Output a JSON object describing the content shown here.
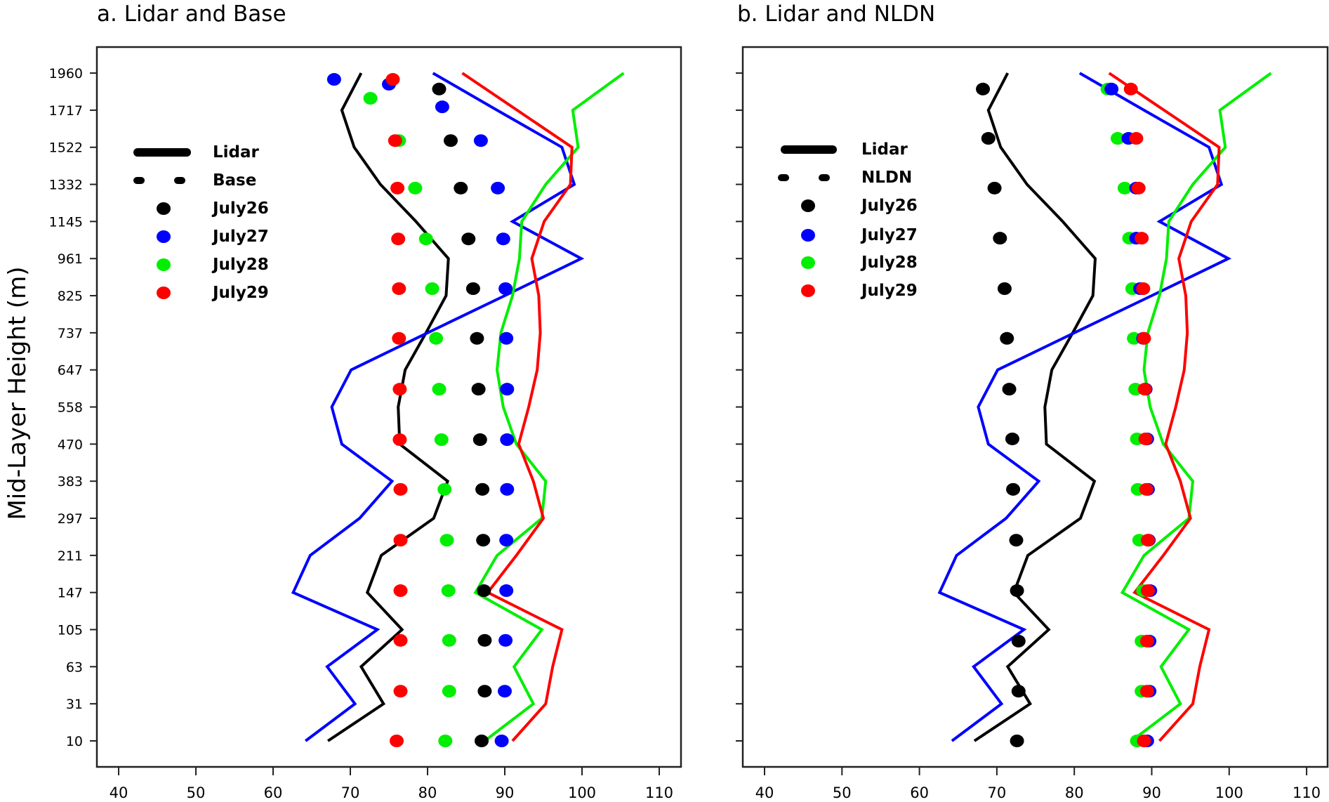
{
  "figure": {
    "panels": [
      {
        "id": "a",
        "title": "a. Lidar and Base",
        "legend_model_label": "Base"
      },
      {
        "id": "b",
        "title": "b. Lidar and NLDN",
        "legend_model_label": "NLDN"
      }
    ],
    "y_axis_label": "Mid-Layer Height (m)",
    "legend": {
      "lidar_label": "Lidar",
      "days": [
        {
          "label": "July26",
          "color": "#000000"
        },
        {
          "label": "July27",
          "color": "#0000ff"
        },
        {
          "label": "July28",
          "color": "#00ee00"
        },
        {
          "label": "July29",
          "color": "#ff0000"
        }
      ]
    }
  },
  "chart_data": [
    {
      "type": "line",
      "title": "a. Lidar and Base",
      "xlabel": "",
      "ylabel": "Mid-Layer Height (m)",
      "xlim": [
        40,
        110
      ],
      "xticks": [
        40,
        50,
        60,
        70,
        80,
        90,
        100,
        110
      ],
      "yticks": [
        10,
        31,
        63,
        105,
        147,
        211,
        297,
        383,
        470,
        558,
        647,
        737,
        825,
        961,
        1145,
        1332,
        1522,
        1717,
        1960
      ],
      "y_axis_type": "categorical-index",
      "grid": false,
      "legend": [
        "Lidar (solid line)",
        "Base (dots)",
        "July26",
        "July27",
        "July28",
        "July29"
      ],
      "legend_position": "upper-left",
      "series_lines": [
        {
          "name": "Lidar July26",
          "color": "#000000",
          "values": [
            67.1,
            74.3,
            71.4,
            76.7,
            72.2,
            74.0,
            80.8,
            82.6,
            76.4,
            76.2,
            77.1,
            79.8,
            82.4,
            82.7,
            78.5,
            73.9,
            70.5,
            68.9,
            71.4
          ]
        },
        {
          "name": "Lidar July27",
          "color": "#0000ff",
          "values": [
            64.2,
            70.6,
            67.0,
            73.5,
            62.6,
            64.8,
            71.2,
            75.4,
            68.9,
            67.6,
            70.1,
            80.0,
            90.0,
            99.9,
            91.0,
            99.0,
            97.4,
            89.0,
            80.7
          ]
        },
        {
          "name": "Lidar July28",
          "color": "#00ee00",
          "values": [
            87.4,
            93.7,
            91.2,
            94.8,
            86.2,
            89.0,
            94.8,
            95.3,
            91.5,
            89.8,
            89.0,
            89.5,
            91.0,
            91.9,
            92.2,
            95.3,
            99.5,
            98.8,
            105.4
          ]
        },
        {
          "name": "Lidar July29",
          "color": "#ff0000",
          "values": [
            91.0,
            95.3,
            96.2,
            97.4,
            87.8,
            91.5,
            95.0,
            93.7,
            91.8,
            93.1,
            94.2,
            94.6,
            94.4,
            93.5,
            95.1,
            98.5,
            98.7,
            91.6,
            84.5
          ]
        }
      ],
      "dot_rows_index": [
        0,
        1.34,
        2.71,
        4.05,
        5.41,
        6.78,
        8.12,
        9.48,
        10.85,
        12.19,
        13.53,
        14.9,
        16.18
      ],
      "series_dots": [
        {
          "name": "Base July26",
          "color": "#000000",
          "values": [
            87.0,
            87.4,
            87.4,
            87.3,
            87.2,
            87.1,
            86.8,
            86.6,
            86.4,
            85.9,
            85.3,
            84.3,
            83.0
          ],
          "extra": [
            [
              17.57,
              81.5
            ]
          ]
        },
        {
          "name": "Base July27",
          "color": "#0000ff",
          "values": [
            89.6,
            90.0,
            90.1,
            90.2,
            90.2,
            90.3,
            90.3,
            90.3,
            90.2,
            90.1,
            89.8,
            89.1,
            86.9
          ],
          "extra": [
            [
              17.83,
              67.9
            ],
            [
              17.7,
              75.0
            ],
            [
              17.09,
              81.9
            ]
          ]
        },
        {
          "name": "Base July28",
          "color": "#00ee00",
          "values": [
            82.3,
            82.8,
            82.8,
            82.7,
            82.5,
            82.2,
            81.8,
            81.5,
            81.1,
            80.6,
            79.8,
            78.4,
            76.3
          ],
          "extra": [
            [
              17.32,
              72.6
            ]
          ]
        },
        {
          "name": "Base July29",
          "color": "#ff0000",
          "values": [
            76.0,
            76.5,
            76.5,
            76.5,
            76.5,
            76.5,
            76.4,
            76.4,
            76.3,
            76.3,
            76.2,
            76.1,
            75.8
          ],
          "extra": [
            [
              17.83,
              75.5
            ]
          ]
        }
      ]
    },
    {
      "type": "line",
      "title": "b. Lidar and NLDN",
      "xlabel": "",
      "ylabel": "",
      "xlim": [
        40,
        110
      ],
      "xticks": [
        40,
        50,
        60,
        70,
        80,
        90,
        100,
        110
      ],
      "yticks": [
        10,
        31,
        63,
        105,
        147,
        211,
        297,
        383,
        470,
        558,
        647,
        737,
        825,
        961,
        1145,
        1332,
        1522,
        1717,
        1960
      ],
      "y_axis_type": "categorical-index",
      "grid": false,
      "legend": [
        "Lidar (solid line)",
        "NLDN (dots)",
        "July26",
        "July27",
        "July28",
        "July29"
      ],
      "legend_position": "upper-left",
      "series_lines": [
        {
          "name": "Lidar July26",
          "color": "#000000",
          "values": [
            67.1,
            74.3,
            71.4,
            76.7,
            72.2,
            74.0,
            80.8,
            82.6,
            76.4,
            76.2,
            77.1,
            79.8,
            82.4,
            82.7,
            78.5,
            73.9,
            70.5,
            68.9,
            71.4
          ]
        },
        {
          "name": "Lidar July27",
          "color": "#0000ff",
          "values": [
            64.2,
            70.6,
            67.0,
            73.5,
            62.6,
            64.8,
            71.2,
            75.4,
            68.9,
            67.6,
            70.1,
            80.0,
            90.0,
            99.9,
            91.0,
            99.0,
            97.4,
            89.0,
            80.7
          ]
        },
        {
          "name": "Lidar July28",
          "color": "#00ee00",
          "values": [
            87.4,
            93.7,
            91.2,
            94.8,
            86.2,
            89.0,
            94.8,
            95.3,
            91.5,
            89.8,
            89.0,
            89.5,
            91.0,
            91.9,
            92.2,
            95.3,
            99.5,
            98.8,
            105.4
          ]
        },
        {
          "name": "Lidar July29",
          "color": "#ff0000",
          "values": [
            91.0,
            95.3,
            96.2,
            97.4,
            87.8,
            91.5,
            95.0,
            93.7,
            91.8,
            93.1,
            94.2,
            94.6,
            94.4,
            93.5,
            95.1,
            98.5,
            98.7,
            91.6,
            84.5
          ]
        }
      ],
      "dot_rows_index": [
        0,
        1.34,
        2.69,
        4.05,
        5.41,
        6.78,
        8.14,
        9.48,
        10.85,
        12.19,
        13.55,
        14.9,
        16.24,
        17.57
      ],
      "series_dots": [
        {
          "name": "NLDN July26",
          "color": "#000000",
          "values": [
            72.6,
            72.8,
            72.8,
            72.6,
            72.5,
            72.1,
            72.0,
            71.6,
            71.3,
            71.0,
            70.4,
            69.7,
            68.9,
            68.2
          ]
        },
        {
          "name": "NLDN July27",
          "color": "#0000ff",
          "values": [
            89.4,
            89.7,
            89.7,
            89.8,
            89.6,
            89.5,
            89.4,
            89.2,
            88.9,
            88.5,
            88.0,
            88.0,
            87.0,
            84.8
          ]
        },
        {
          "name": "NLDN July28",
          "color": "#00ee00",
          "values": [
            88.1,
            88.7,
            88.7,
            88.9,
            88.4,
            88.2,
            88.1,
            87.9,
            87.7,
            87.5,
            87.1,
            86.5,
            85.6,
            84.3
          ]
        },
        {
          "name": "NLDN July29",
          "color": "#ff0000",
          "values": [
            89.0,
            89.4,
            89.4,
            89.5,
            89.5,
            89.3,
            89.2,
            89.1,
            89.0,
            88.9,
            88.7,
            88.3,
            88.0,
            87.3
          ]
        }
      ]
    }
  ]
}
